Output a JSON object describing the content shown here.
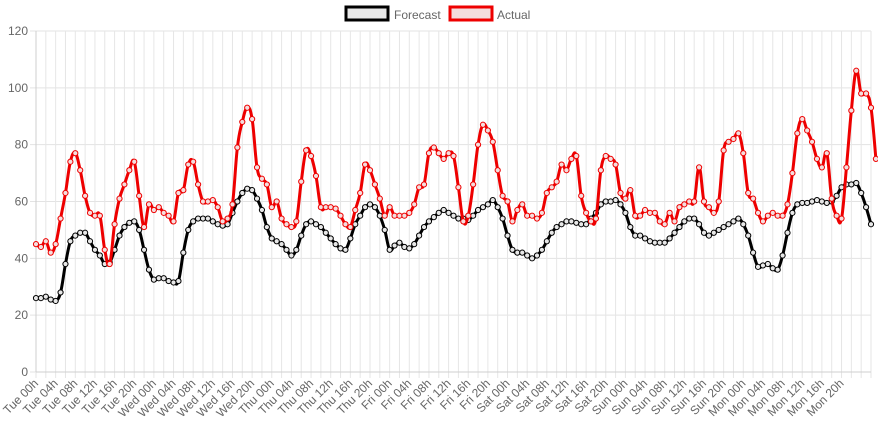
{
  "chart_data": {
    "type": "line",
    "ylim": [
      0,
      120
    ],
    "yticks": [
      0,
      20,
      40,
      60,
      80,
      100,
      120
    ],
    "grid": true,
    "legend_position": "top-center",
    "x_tick_every_hours": 4,
    "x_tick_labels": [
      "Tue 00h",
      "Tue 04h",
      "Tue 08h",
      "Tue 12h",
      "Tue 16h",
      "Tue 20h",
      "Wed 00h",
      "Wed 04h",
      "Wed 08h",
      "Wed 12h",
      "Wed 16h",
      "Wed 20h",
      "Thu 00h",
      "Thu 04h",
      "Thu 08h",
      "Thu 12h",
      "Thu 16h",
      "Thu 20h",
      "Fri 00h",
      "Fri 04h",
      "Fri 08h",
      "Fri 12h",
      "Fri 16h",
      "Fri 20h",
      "Sat 00h",
      "Sat 04h",
      "Sat 08h",
      "Sat 12h",
      "Sat 16h",
      "Sat 20h",
      "Sun 00h",
      "Sun 04h",
      "Sun 08h",
      "Sun 12h",
      "Sun 16h",
      "Sun 20h",
      "Mon 00h",
      "Mon 04h",
      "Mon 08h",
      "Mon 12h",
      "Mon 16h",
      "Mon 20h"
    ],
    "series": [
      {
        "name": "Forecast",
        "color": "#000000",
        "fill": "#e8e8e8",
        "values": [
          26,
          26,
          26.5,
          25.5,
          25,
          28,
          38,
          46,
          48,
          49,
          49,
          46,
          43,
          41,
          38,
          38.5,
          43,
          48,
          51,
          52.5,
          53,
          50,
          43,
          36,
          32.5,
          33,
          33,
          32,
          31.5,
          32,
          42,
          50,
          53,
          54,
          54,
          54,
          53,
          52,
          51.5,
          52,
          56,
          60,
          63,
          64.5,
          64,
          61,
          57,
          51,
          47,
          46,
          45,
          43,
          41,
          43,
          48,
          52,
          53,
          52,
          51,
          49,
          47,
          45,
          43.5,
          43,
          47,
          52,
          55,
          58,
          59,
          58,
          55,
          50,
          43,
          44.5,
          45.5,
          44,
          43.5,
          45,
          48,
          51,
          53,
          54.5,
          56,
          57,
          56,
          55,
          54,
          54,
          53.5,
          55,
          57,
          58,
          59,
          60.5,
          58,
          54,
          48,
          43,
          42,
          42,
          41,
          40,
          41,
          43,
          46,
          49,
          51,
          52,
          53,
          53,
          52.5,
          52,
          52,
          54,
          56,
          59,
          60,
          60,
          60.5,
          59,
          56,
          51,
          48,
          48,
          47,
          46,
          45.5,
          45.5,
          45.5,
          47,
          49,
          51,
          53,
          54,
          54,
          52,
          49,
          48,
          49,
          50,
          51,
          52,
          53,
          54,
          52,
          48,
          42,
          37,
          37.5,
          38,
          36.5,
          36,
          41,
          49,
          56,
          59,
          59.5,
          59.5,
          60,
          60.5,
          60,
          59.5,
          60,
          62,
          65,
          66,
          66,
          66.5,
          63,
          58,
          52
        ]
      },
      {
        "name": "Actual",
        "color": "#ee0000",
        "fill": "#f4dede",
        "values": [
          45,
          44,
          46,
          42,
          45,
          54,
          63,
          74,
          77,
          71,
          62,
          56,
          55,
          55,
          43,
          38,
          52,
          61,
          66,
          71,
          74,
          62,
          51,
          59,
          57,
          58,
          56,
          55,
          53,
          63,
          64,
          73,
          74,
          66,
          60,
          60,
          60.5,
          58,
          53,
          54,
          59,
          79,
          88,
          93,
          89,
          72,
          68,
          66,
          58,
          60,
          54,
          52,
          51,
          53,
          67,
          78,
          76,
          69,
          58,
          58,
          58,
          57.5,
          55,
          52,
          51,
          57,
          63,
          73,
          71,
          66,
          61,
          55,
          58,
          55,
          55,
          55,
          56,
          59,
          65,
          66,
          77,
          79,
          77,
          75,
          77,
          76,
          65,
          53,
          55,
          66,
          80,
          87,
          85,
          81,
          71,
          62,
          60,
          53,
          57,
          59,
          55,
          55,
          54,
          56,
          63,
          65,
          67,
          73,
          71,
          75,
          76,
          62,
          56,
          53,
          54,
          71,
          76,
          75,
          73,
          63,
          61,
          64,
          55,
          55,
          57,
          56,
          56,
          53,
          52,
          56,
          53,
          58,
          59,
          60,
          60,
          72,
          60,
          58,
          56,
          60,
          78,
          81,
          82,
          84,
          77,
          63,
          61,
          56,
          53,
          55,
          56,
          55,
          55,
          59,
          70,
          84,
          89,
          85,
          81,
          75,
          72,
          77,
          61,
          55,
          54,
          72,
          92,
          106,
          98,
          98,
          93,
          75
        ]
      }
    ]
  }
}
